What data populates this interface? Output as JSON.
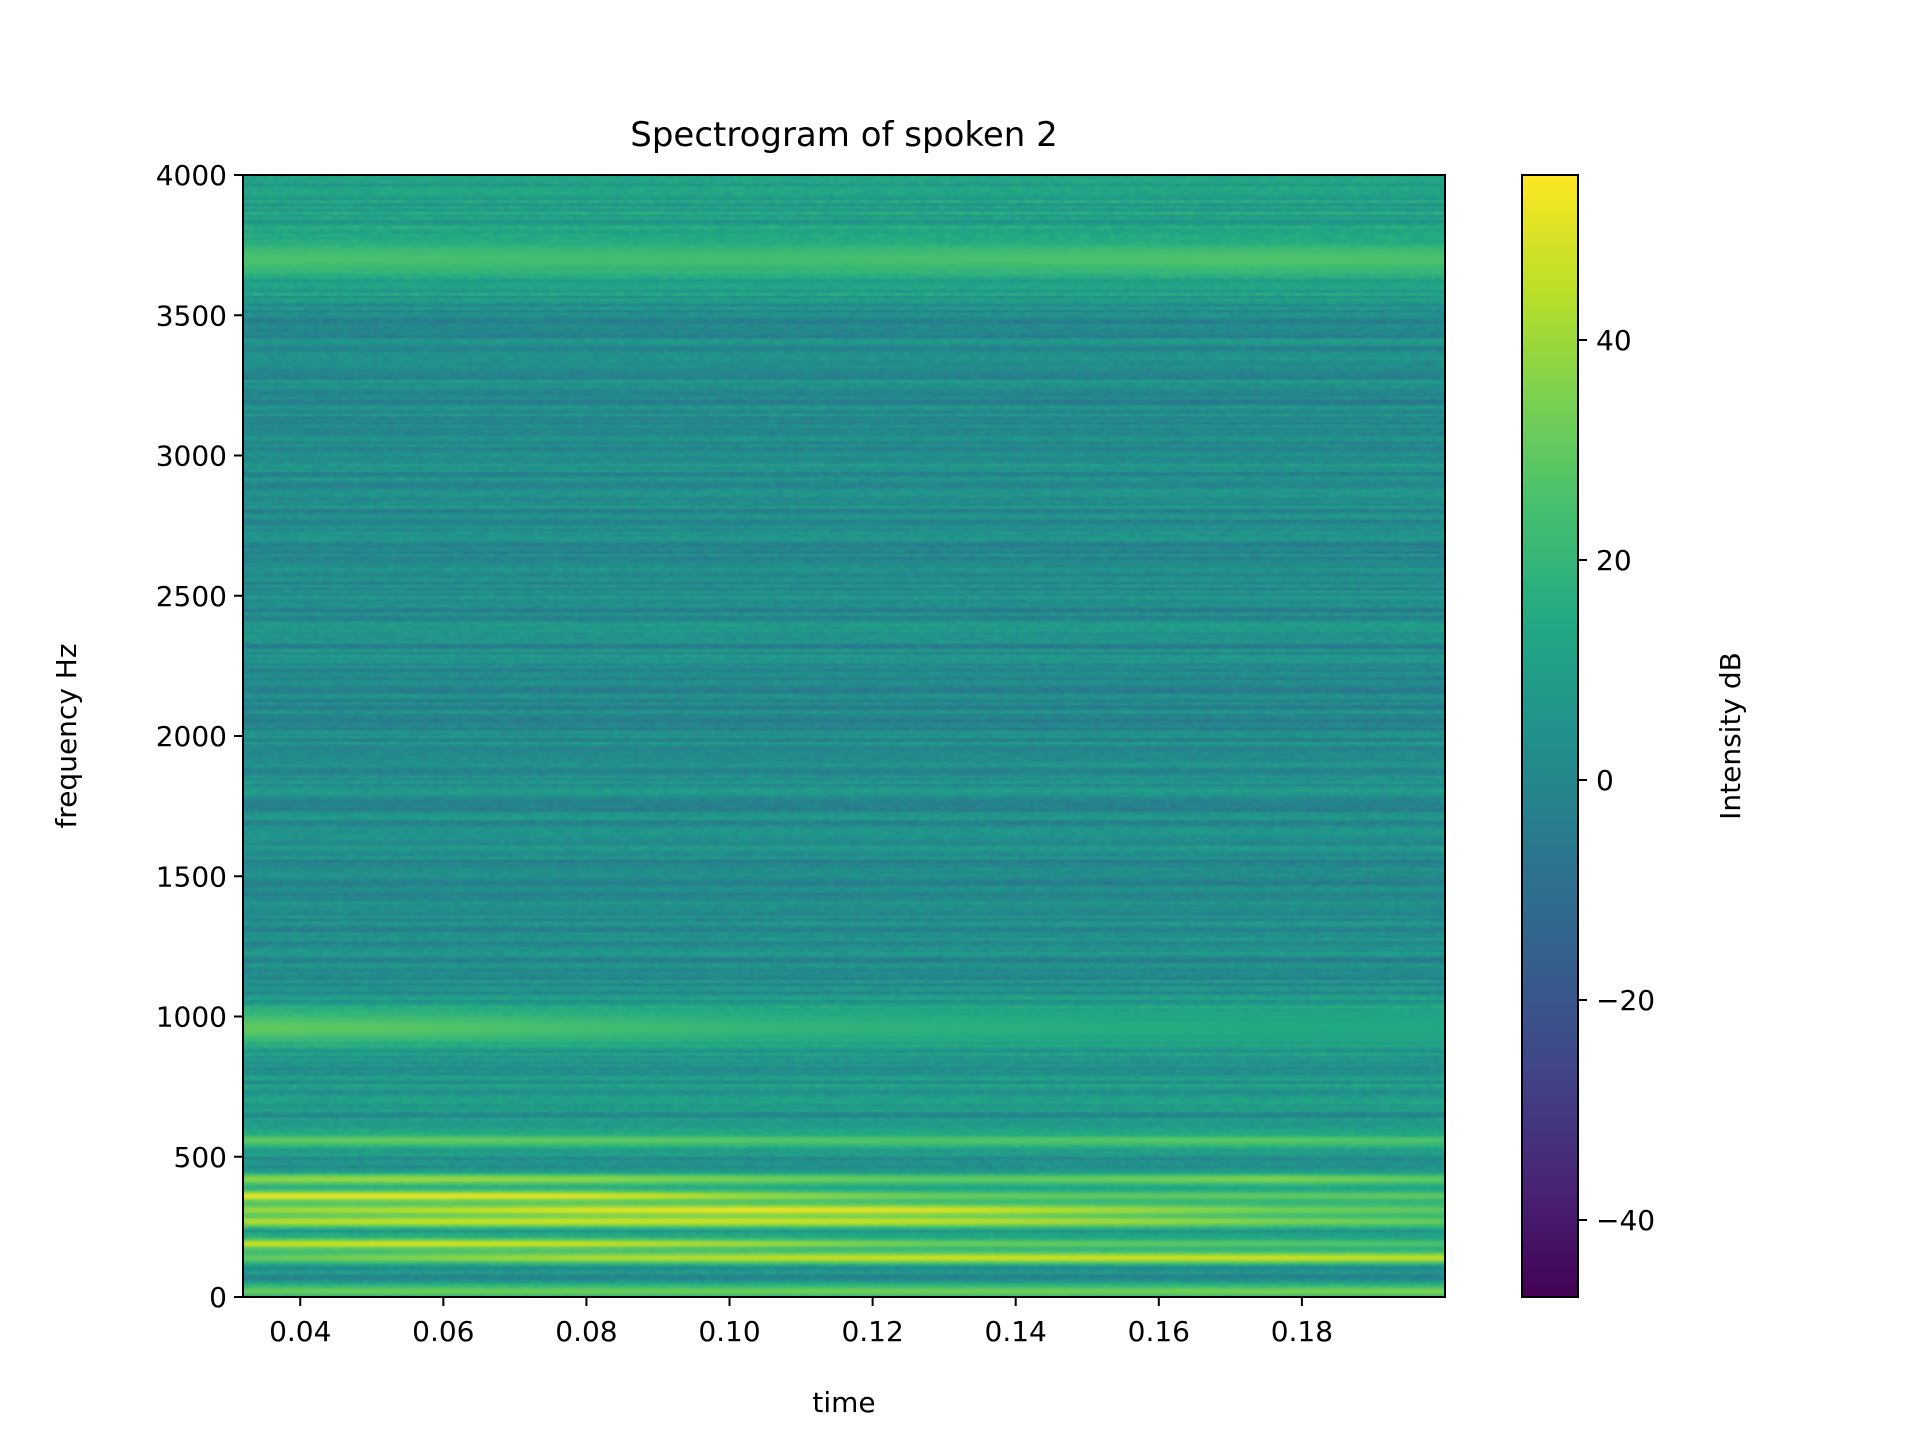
{
  "chart_data": {
    "type": "heatmap",
    "title": "Spectrogram of spoken 2",
    "xlabel": "time",
    "ylabel": "frequency Hz",
    "xlim": [
      0.032,
      0.2
    ],
    "ylim": [
      0,
      4000
    ],
    "x_ticks": [
      "0.04",
      "0.06",
      "0.08",
      "0.10",
      "0.12",
      "0.14",
      "0.16",
      "0.18"
    ],
    "x_tick_values": [
      0.04,
      0.06,
      0.08,
      0.1,
      0.12,
      0.14,
      0.16,
      0.18
    ],
    "y_ticks": [
      "0",
      "500",
      "1000",
      "1500",
      "2000",
      "2500",
      "3000",
      "3500",
      "4000"
    ],
    "y_tick_values": [
      0,
      500,
      1000,
      1500,
      2000,
      2500,
      3000,
      3500,
      4000
    ],
    "colormap": "viridis",
    "colorbar": {
      "label": "Intensity dB",
      "range": [
        -47,
        55
      ],
      "ticks": [
        "−40",
        "−20",
        "0",
        "20",
        "40"
      ],
      "tick_values": [
        -40,
        -20,
        0,
        20,
        40
      ]
    },
    "bands": [
      {
        "freq": 20,
        "db": [
          32,
          33,
          33,
          33,
          34,
          34,
          35,
          36
        ]
      },
      {
        "freq": 140,
        "db": [
          30,
          36,
          42,
          45,
          47,
          47,
          47,
          45
        ]
      },
      {
        "freq": 190,
        "db": [
          46,
          48,
          46,
          40,
          32,
          30,
          28,
          26
        ]
      },
      {
        "freq": 270,
        "db": [
          44,
          47,
          48,
          48,
          46,
          42,
          36,
          32
        ]
      },
      {
        "freq": 360,
        "db": [
          52,
          52,
          50,
          40,
          32,
          30,
          30,
          30
        ]
      },
      {
        "freq": 310,
        "db": [
          40,
          44,
          50,
          52,
          50,
          42,
          34,
          30
        ]
      },
      {
        "freq": 420,
        "db": [
          38,
          40,
          38,
          34,
          30,
          32,
          36,
          30
        ]
      },
      {
        "freq": 560,
        "db": [
          30,
          31,
          30,
          28,
          27,
          28,
          29,
          26
        ]
      },
      {
        "freq": 960,
        "db": [
          30,
          28,
          24,
          20,
          18,
          16,
          15,
          14
        ]
      },
      {
        "freq": 3700,
        "db": [
          26,
          25,
          24,
          24,
          25,
          26,
          27,
          26
        ]
      }
    ]
  }
}
